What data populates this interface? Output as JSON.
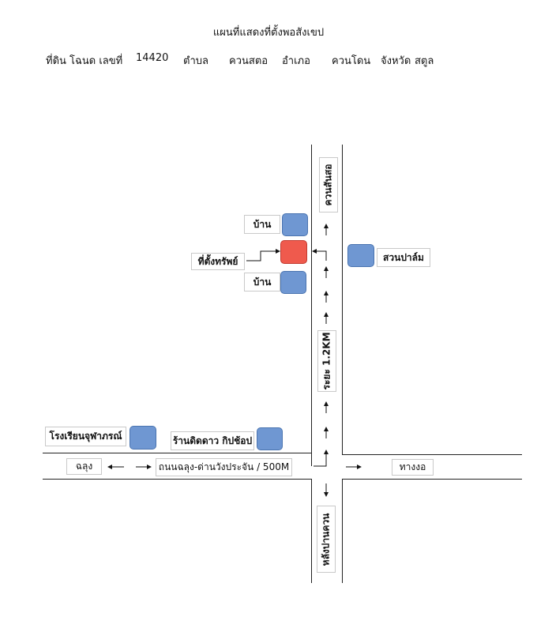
{
  "header": {
    "title": "แผนที่แสดงที่ตั้งพอสังเขป",
    "deed_label": "ที่ดิน โฉนด เลขที่",
    "deed_number": "14420",
    "subdistrict_label": "ตำบล",
    "subdistrict": "ควนสตอ",
    "district_label": "อำเภอ",
    "district": "ควนโดน",
    "province_label": "จังหวัด",
    "province": "สตูล"
  },
  "places": {
    "house_top": "บ้าน",
    "house_bottom": "บ้าน",
    "property": "ที่ตั้งทรัพย์",
    "rubber_farm": "สวนปาล์ม",
    "school": "โรงเรียนจุฬาภรณ์",
    "shop": "ร้านดิดดาว กิปช้อป"
  },
  "roads": {
    "north_dest": "ควนสันสอ",
    "distance": "ระยะ 1.2KM",
    "west_dest": "ฉลุง",
    "main_road": "ถนนฉลุง-ด่านวังประจัน / 500M",
    "east_dest": "ทางงอ",
    "south_dest": "หลังปานควน"
  },
  "colors": {
    "marker_blue": "#6f97d2",
    "marker_red": "#ef5a4d",
    "road_line": "#222222"
  }
}
